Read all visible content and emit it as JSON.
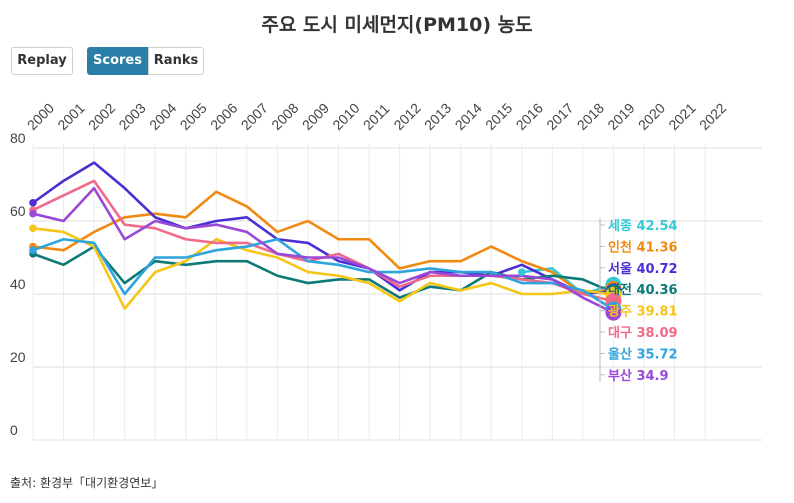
{
  "header": {
    "title": "주요 도시 미세먼지(PM10) 농도"
  },
  "controls": {
    "replay_label": "Replay",
    "scores_label": "Scores",
    "ranks_label": "Ranks",
    "active_mode": "Scores"
  },
  "footer": {
    "source": "출처: 환경부「대기환경연보」"
  },
  "chart_data": {
    "type": "line",
    "title": "주요 도시 미세먼지(PM10) 농도",
    "x": [
      2000,
      2001,
      2002,
      2003,
      2004,
      2005,
      2006,
      2007,
      2008,
      2009,
      2010,
      2011,
      2012,
      2013,
      2014,
      2015,
      2016,
      2017,
      2018,
      2019,
      2020,
      2021,
      2022
    ],
    "ylim": [
      0,
      80
    ],
    "yticks": [
      0,
      20,
      40,
      60,
      80
    ],
    "grid": true,
    "legend": "end-labels-right",
    "series": [
      {
        "name": "세종",
        "color": "#35c9d6",
        "value_label": "42.54",
        "values": [
          null,
          null,
          null,
          null,
          null,
          null,
          null,
          null,
          null,
          null,
          null,
          null,
          null,
          null,
          null,
          null,
          46,
          47,
          40,
          42.54,
          null,
          null,
          null
        ]
      },
      {
        "name": "인천",
        "color": "#f08a12",
        "value_label": "41.36",
        "values": [
          53,
          52,
          57,
          61,
          62,
          61,
          68,
          64,
          57,
          60,
          55,
          55,
          47,
          49,
          49,
          53,
          49,
          46,
          40,
          41.36,
          null,
          null,
          null
        ]
      },
      {
        "name": "서울",
        "color": "#4a2fd4",
        "value_label": "40.72",
        "values": [
          65,
          71,
          76,
          69,
          61,
          58,
          60,
          61,
          55,
          54,
          49,
          47,
          41,
          46,
          46,
          45,
          48,
          44,
          40,
          40.72,
          null,
          null,
          null
        ]
      },
      {
        "name": "대전",
        "color": "#0e7a77",
        "value_label": "40.36",
        "values": [
          51,
          48,
          53,
          43,
          49,
          48,
          49,
          49,
          45,
          43,
          44,
          44,
          39,
          42,
          41,
          46,
          44,
          45,
          44,
          40.36,
          null,
          null,
          null
        ]
      },
      {
        "name": "광주",
        "color": "#f5c518",
        "value_label": "39.81",
        "values": [
          58,
          57,
          53,
          36,
          46,
          49,
          55,
          52,
          50,
          46,
          45,
          43,
          38,
          43,
          41,
          43,
          40,
          40,
          41,
          39.81,
          null,
          null,
          null
        ]
      },
      {
        "name": "대구",
        "color": "#f06a8a",
        "value_label": "38.09",
        "values": [
          63,
          67,
          71,
          59,
          58,
          55,
          54,
          54,
          51,
          49,
          51,
          47,
          42,
          45,
          45,
          45,
          44,
          43,
          40,
          38.09,
          null,
          null,
          null
        ]
      },
      {
        "name": "울산",
        "color": "#2ea4dc",
        "value_label": "35.72",
        "values": [
          52,
          55,
          54,
          40,
          50,
          50,
          52,
          53,
          55,
          49,
          48,
          46,
          46,
          47,
          46,
          46,
          43,
          43,
          41,
          35.72,
          null,
          null,
          null
        ]
      },
      {
        "name": "부산",
        "color": "#9a48d8",
        "value_label": "34.9",
        "values": [
          62,
          60,
          69,
          55,
          60,
          58,
          59,
          57,
          51,
          50,
          50,
          47,
          43,
          46,
          45,
          45,
          45,
          44,
          39,
          34.9,
          null,
          null,
          null
        ]
      }
    ]
  }
}
